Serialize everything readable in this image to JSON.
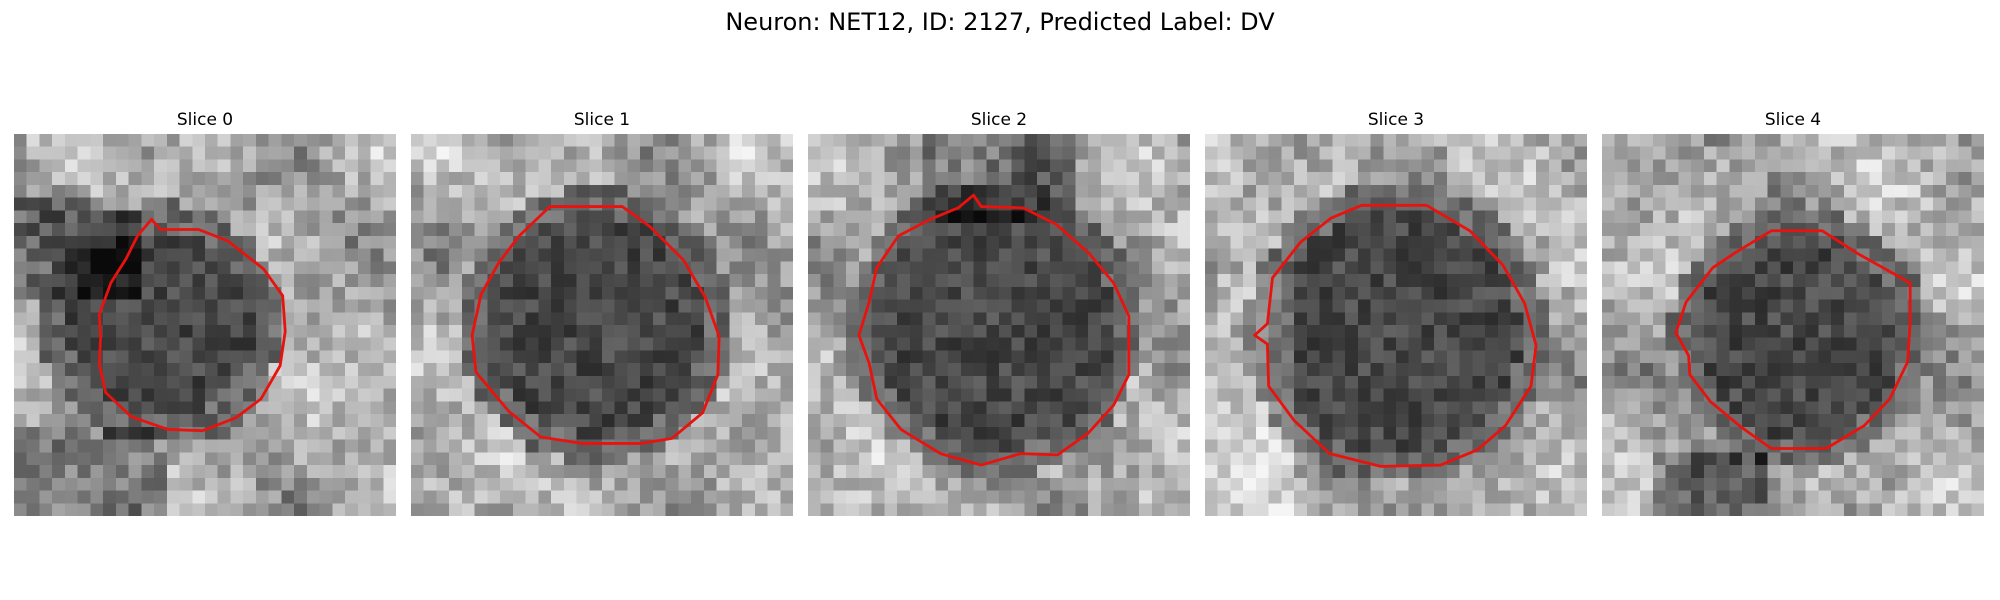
{
  "figure": {
    "title": "Neuron: NET12, ID: 2127, Predicted Label: DV"
  },
  "panels": [
    {
      "title": "Slice 0",
      "contour_color": "#e8120e"
    },
    {
      "title": "Slice 1",
      "contour_color": "#e8120e"
    },
    {
      "title": "Slice 2",
      "contour_color": "#e8120e"
    },
    {
      "title": "Slice 3",
      "contour_color": "#e8120e"
    },
    {
      "title": "Slice 4",
      "contour_color": "#e8120e"
    }
  ],
  "colormap": "gray",
  "background_color": "#ffffff"
}
